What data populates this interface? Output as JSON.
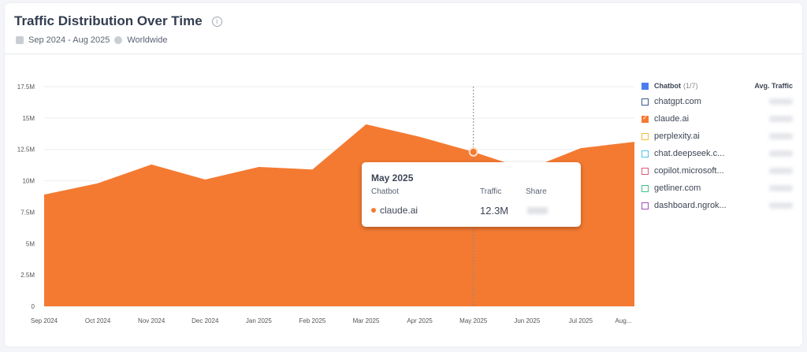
{
  "header": {
    "title": "Traffic Distribution Over Time",
    "date_range": "Sep 2024 - Aug 2025",
    "region": "Worldwide"
  },
  "legend": {
    "header": "Chatbot",
    "count": "(1/7)",
    "avg_label": "Avg. Traffic",
    "items": [
      {
        "label": "chatgpt.com",
        "color": "#3c5a8c",
        "checked": false
      },
      {
        "label": "claude.ai",
        "color": "#f47a32",
        "checked": true
      },
      {
        "label": "perplexity.ai",
        "color": "#f6b93b",
        "checked": false
      },
      {
        "label": "chat.deepseek.c...",
        "color": "#4cc3e8",
        "checked": false
      },
      {
        "label": "copilot.microsoft...",
        "color": "#e05a7c",
        "checked": false
      },
      {
        "label": "getliner.com",
        "color": "#3dc48a",
        "checked": false
      },
      {
        "label": "dashboard.ngrok...",
        "color": "#9b4fb8",
        "checked": false
      }
    ]
  },
  "tooltip": {
    "month": "May 2025",
    "col_chatbot": "Chatbot",
    "col_traffic": "Traffic",
    "col_share": "Share",
    "name": "claude.ai",
    "traffic": "12.3M"
  },
  "chart_data": {
    "type": "area",
    "title": "Traffic Distribution Over Time",
    "categories": [
      "Sep 2024",
      "Oct 2024",
      "Nov 2024",
      "Dec 2024",
      "Jan 2025",
      "Feb 2025",
      "Mar 2025",
      "Apr 2025",
      "May 2025",
      "Jun 2025",
      "Jul 2025",
      "Aug..."
    ],
    "series": [
      {
        "name": "claude.ai",
        "color": "#f47a32",
        "values": [
          8.9,
          9.8,
          11.3,
          10.1,
          11.1,
          10.9,
          14.5,
          13.5,
          12.3,
          10.9,
          12.6,
          13.1
        ]
      }
    ],
    "y_ticks": [
      "0",
      "2.5M",
      "5M",
      "7.5M",
      "10M",
      "12.5M",
      "15M",
      "17.5M"
    ],
    "ylim": [
      0,
      17.5
    ],
    "unit": "M",
    "grid": true,
    "legend": "right",
    "highlight_index": 8
  }
}
